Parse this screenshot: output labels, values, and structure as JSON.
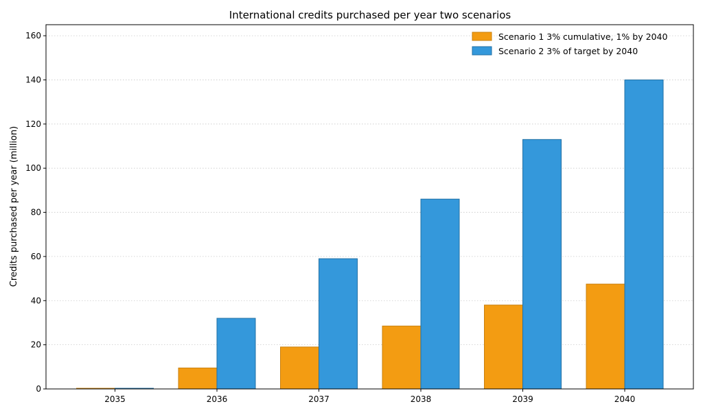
{
  "chart_data": {
    "type": "bar",
    "title": "International credits purchased per year  two scenarios",
    "xlabel": "",
    "ylabel": "Credits purchased per year (million)",
    "categories": [
      "2035",
      "2036",
      "2037",
      "2038",
      "2039",
      "2040"
    ],
    "series": [
      {
        "name": "Scenario 1  3% cumulative, 1% by 2040",
        "values": [
          0.3,
          9.5,
          19,
          28.5,
          38,
          47.5
        ],
        "color": "#f39c12",
        "edge": "#c9800e"
      },
      {
        "name": "Scenario 2  3% of target by 2040",
        "values": [
          0.3,
          32,
          59,
          86,
          113,
          140
        ],
        "color": "#3498db",
        "edge": "#2270a4"
      }
    ],
    "ylim": [
      0,
      165
    ],
    "yticks": [
      0,
      20,
      40,
      60,
      80,
      100,
      120,
      140,
      160
    ],
    "grid": "horizontal dotted",
    "legend_position": "top-right"
  }
}
